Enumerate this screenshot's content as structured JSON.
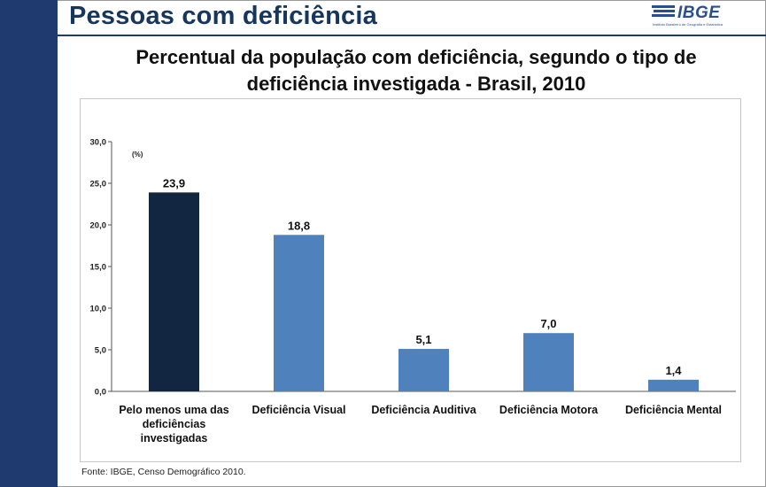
{
  "header": {
    "title": "Pessoas com deficiência",
    "logo_text": "IBGE",
    "logo_subtitle": "Instituto Brasileiro de Geografia e Estatística"
  },
  "chart_title_line1": "Percentual da população com deficiência, segundo o tipo de",
  "chart_title_line2": "deficiência investigada -  Brasil, 2010",
  "source": "Fonte: IBGE, Censo Demográfico 2010.",
  "colors": {
    "band": "#1f3a6e",
    "bar_dark": "#132641",
    "bar_light": "#4f81bd"
  },
  "chart_data": {
    "type": "bar",
    "title": "Percentual da população com deficiência, segundo o tipo de deficiência investigada -  Brasil, 2010",
    "ylabel": "(%)",
    "ylim": [
      0,
      30
    ],
    "yticks": [
      "0,0",
      "5,0",
      "10,0",
      "15,0",
      "20,0",
      "25,0",
      "30,0"
    ],
    "grid": false,
    "categories": [
      [
        "Pelo menos uma das",
        "deficiências",
        "investigadas"
      ],
      [
        "Deficiência Visual"
      ],
      [
        "Deficiência Auditiva"
      ],
      [
        "Deficiência Motora"
      ],
      [
        "Deficiência Mental"
      ]
    ],
    "values": [
      23.9,
      18.8,
      5.1,
      7.0,
      1.4
    ],
    "value_labels": [
      "23,9",
      "18,8",
      "5,1",
      "7,0",
      "1,4"
    ]
  }
}
